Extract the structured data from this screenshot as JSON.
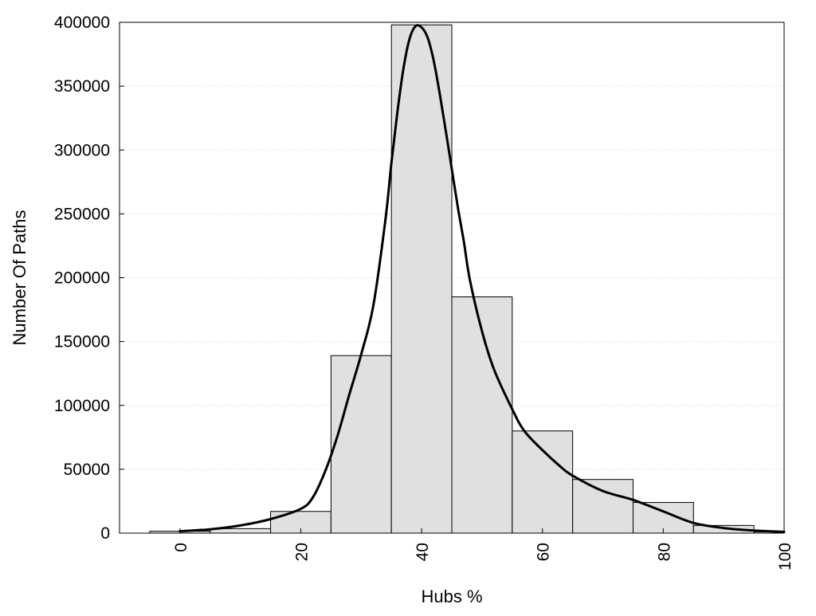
{
  "chart_data": {
    "type": "bar",
    "xlabel": "Hubs %",
    "ylabel": "Number Of Paths",
    "xlim": [
      -10,
      100
    ],
    "ylim": [
      0,
      400000
    ],
    "x_ticks": [
      "0",
      "20",
      "40",
      "60",
      "80",
      "100"
    ],
    "y_ticks": [
      "0",
      "50000",
      "100000",
      "150000",
      "200000",
      "250000",
      "300000",
      "350000",
      "400000"
    ],
    "grid": "horizontal dotted",
    "legend": "none",
    "bin_width": 10,
    "bars": {
      "x": [
        0,
        10,
        20,
        30,
        40,
        50,
        60,
        70,
        80,
        90,
        100
      ],
      "values": [
        1500,
        3500,
        17000,
        139000,
        398000,
        185000,
        80000,
        42000,
        24000,
        6000,
        1000
      ]
    },
    "density_curve": {
      "x": [
        0,
        5,
        10,
        15,
        20,
        22,
        24,
        26,
        28,
        30,
        32,
        34,
        35,
        36,
        37,
        38,
        39,
        40,
        41,
        42,
        43,
        44,
        45,
        46,
        47,
        48,
        50,
        52,
        55,
        57,
        60,
        63,
        65,
        70,
        75,
        80,
        85,
        90,
        95,
        100
      ],
      "values": [
        1500,
        3000,
        6000,
        11000,
        19000,
        28000,
        48000,
        75000,
        108000,
        140000,
        178000,
        245000,
        290000,
        330000,
        364000,
        387000,
        397000,
        396000,
        388000,
        370000,
        344000,
        315000,
        285000,
        255000,
        228000,
        198000,
        158000,
        128000,
        97000,
        80000,
        65000,
        52000,
        45000,
        33000,
        26000,
        17000,
        8000,
        4000,
        2000,
        1000
      ]
    },
    "colors": {
      "bar_fill": "#e0e0e0",
      "bar_stroke": "#000000",
      "curve": "#000000",
      "grid": "#cccccc"
    }
  }
}
